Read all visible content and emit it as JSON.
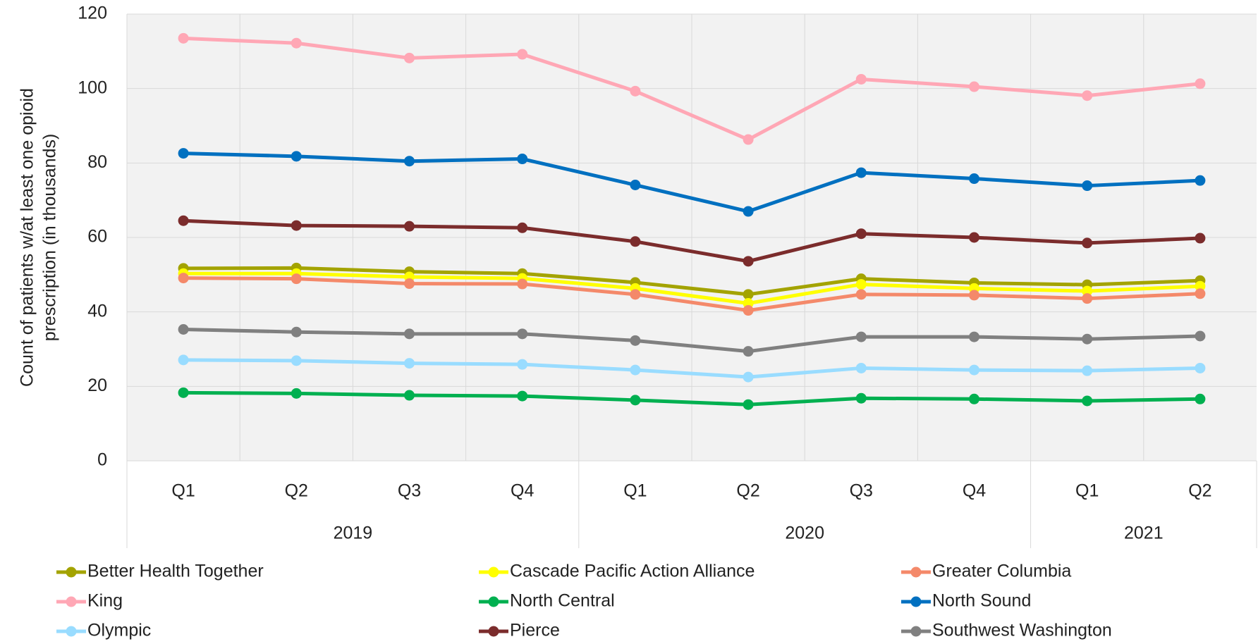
{
  "chart_data": {
    "type": "line",
    "y_label": [
      "Count of patients w/at least one opioid",
      "prescription (in thousands)"
    ],
    "categories": [
      "Q1",
      "Q2",
      "Q3",
      "Q4",
      "Q1",
      "Q2",
      "Q3",
      "Q4",
      "Q1",
      "Q2"
    ],
    "groups": [
      {
        "label": "2019",
        "count": 4
      },
      {
        "label": "2020",
        "count": 4
      },
      {
        "label": "2021",
        "count": 2
      }
    ],
    "ylim": [
      0,
      120
    ],
    "yticks": [
      0,
      20,
      40,
      60,
      80,
      100,
      120
    ],
    "grid": true,
    "series": [
      {
        "name": "Better Health Together",
        "color": "#a3a300",
        "values": [
          51.7,
          51.8,
          50.8,
          50.3,
          47.9,
          44.7,
          48.9,
          47.8,
          47.3,
          48.4
        ]
      },
      {
        "name": "Cascade Pacific Action Alliance",
        "color": "#ffff00",
        "values": [
          50.3,
          50.3,
          49.4,
          49.0,
          46.3,
          42.3,
          47.4,
          46.3,
          45.6,
          46.9
        ]
      },
      {
        "name": "Greater Columbia",
        "color": "#f4896a",
        "values": [
          49.1,
          48.9,
          47.6,
          47.5,
          44.7,
          40.4,
          44.7,
          44.5,
          43.6,
          44.9
        ]
      },
      {
        "name": "King",
        "color": "#ffa7b5",
        "values": [
          113.5,
          112.2,
          108.2,
          109.2,
          99.3,
          86.3,
          102.5,
          100.5,
          98.1,
          101.3
        ]
      },
      {
        "name": "North Central",
        "color": "#00b050",
        "values": [
          18.3,
          18.1,
          17.6,
          17.4,
          16.3,
          15.1,
          16.8,
          16.6,
          16.1,
          16.6
        ]
      },
      {
        "name": "North Sound",
        "color": "#0070c0",
        "values": [
          82.6,
          81.8,
          80.5,
          81.1,
          74.1,
          67.0,
          77.4,
          75.8,
          73.9,
          75.3
        ]
      },
      {
        "name": "Olympic",
        "color": "#99dcff",
        "values": [
          27.1,
          26.9,
          26.2,
          25.9,
          24.4,
          22.5,
          24.9,
          24.4,
          24.2,
          24.9
        ]
      },
      {
        "name": "Pierce",
        "color": "#7b2c2c",
        "values": [
          64.5,
          63.2,
          63.0,
          62.6,
          58.9,
          53.6,
          61.0,
          60.0,
          58.5,
          59.8
        ]
      },
      {
        "name": "Southwest Washington",
        "color": "#808080",
        "values": [
          35.3,
          34.6,
          34.1,
          34.1,
          32.3,
          29.4,
          33.3,
          33.3,
          32.7,
          33.5
        ]
      }
    ]
  }
}
